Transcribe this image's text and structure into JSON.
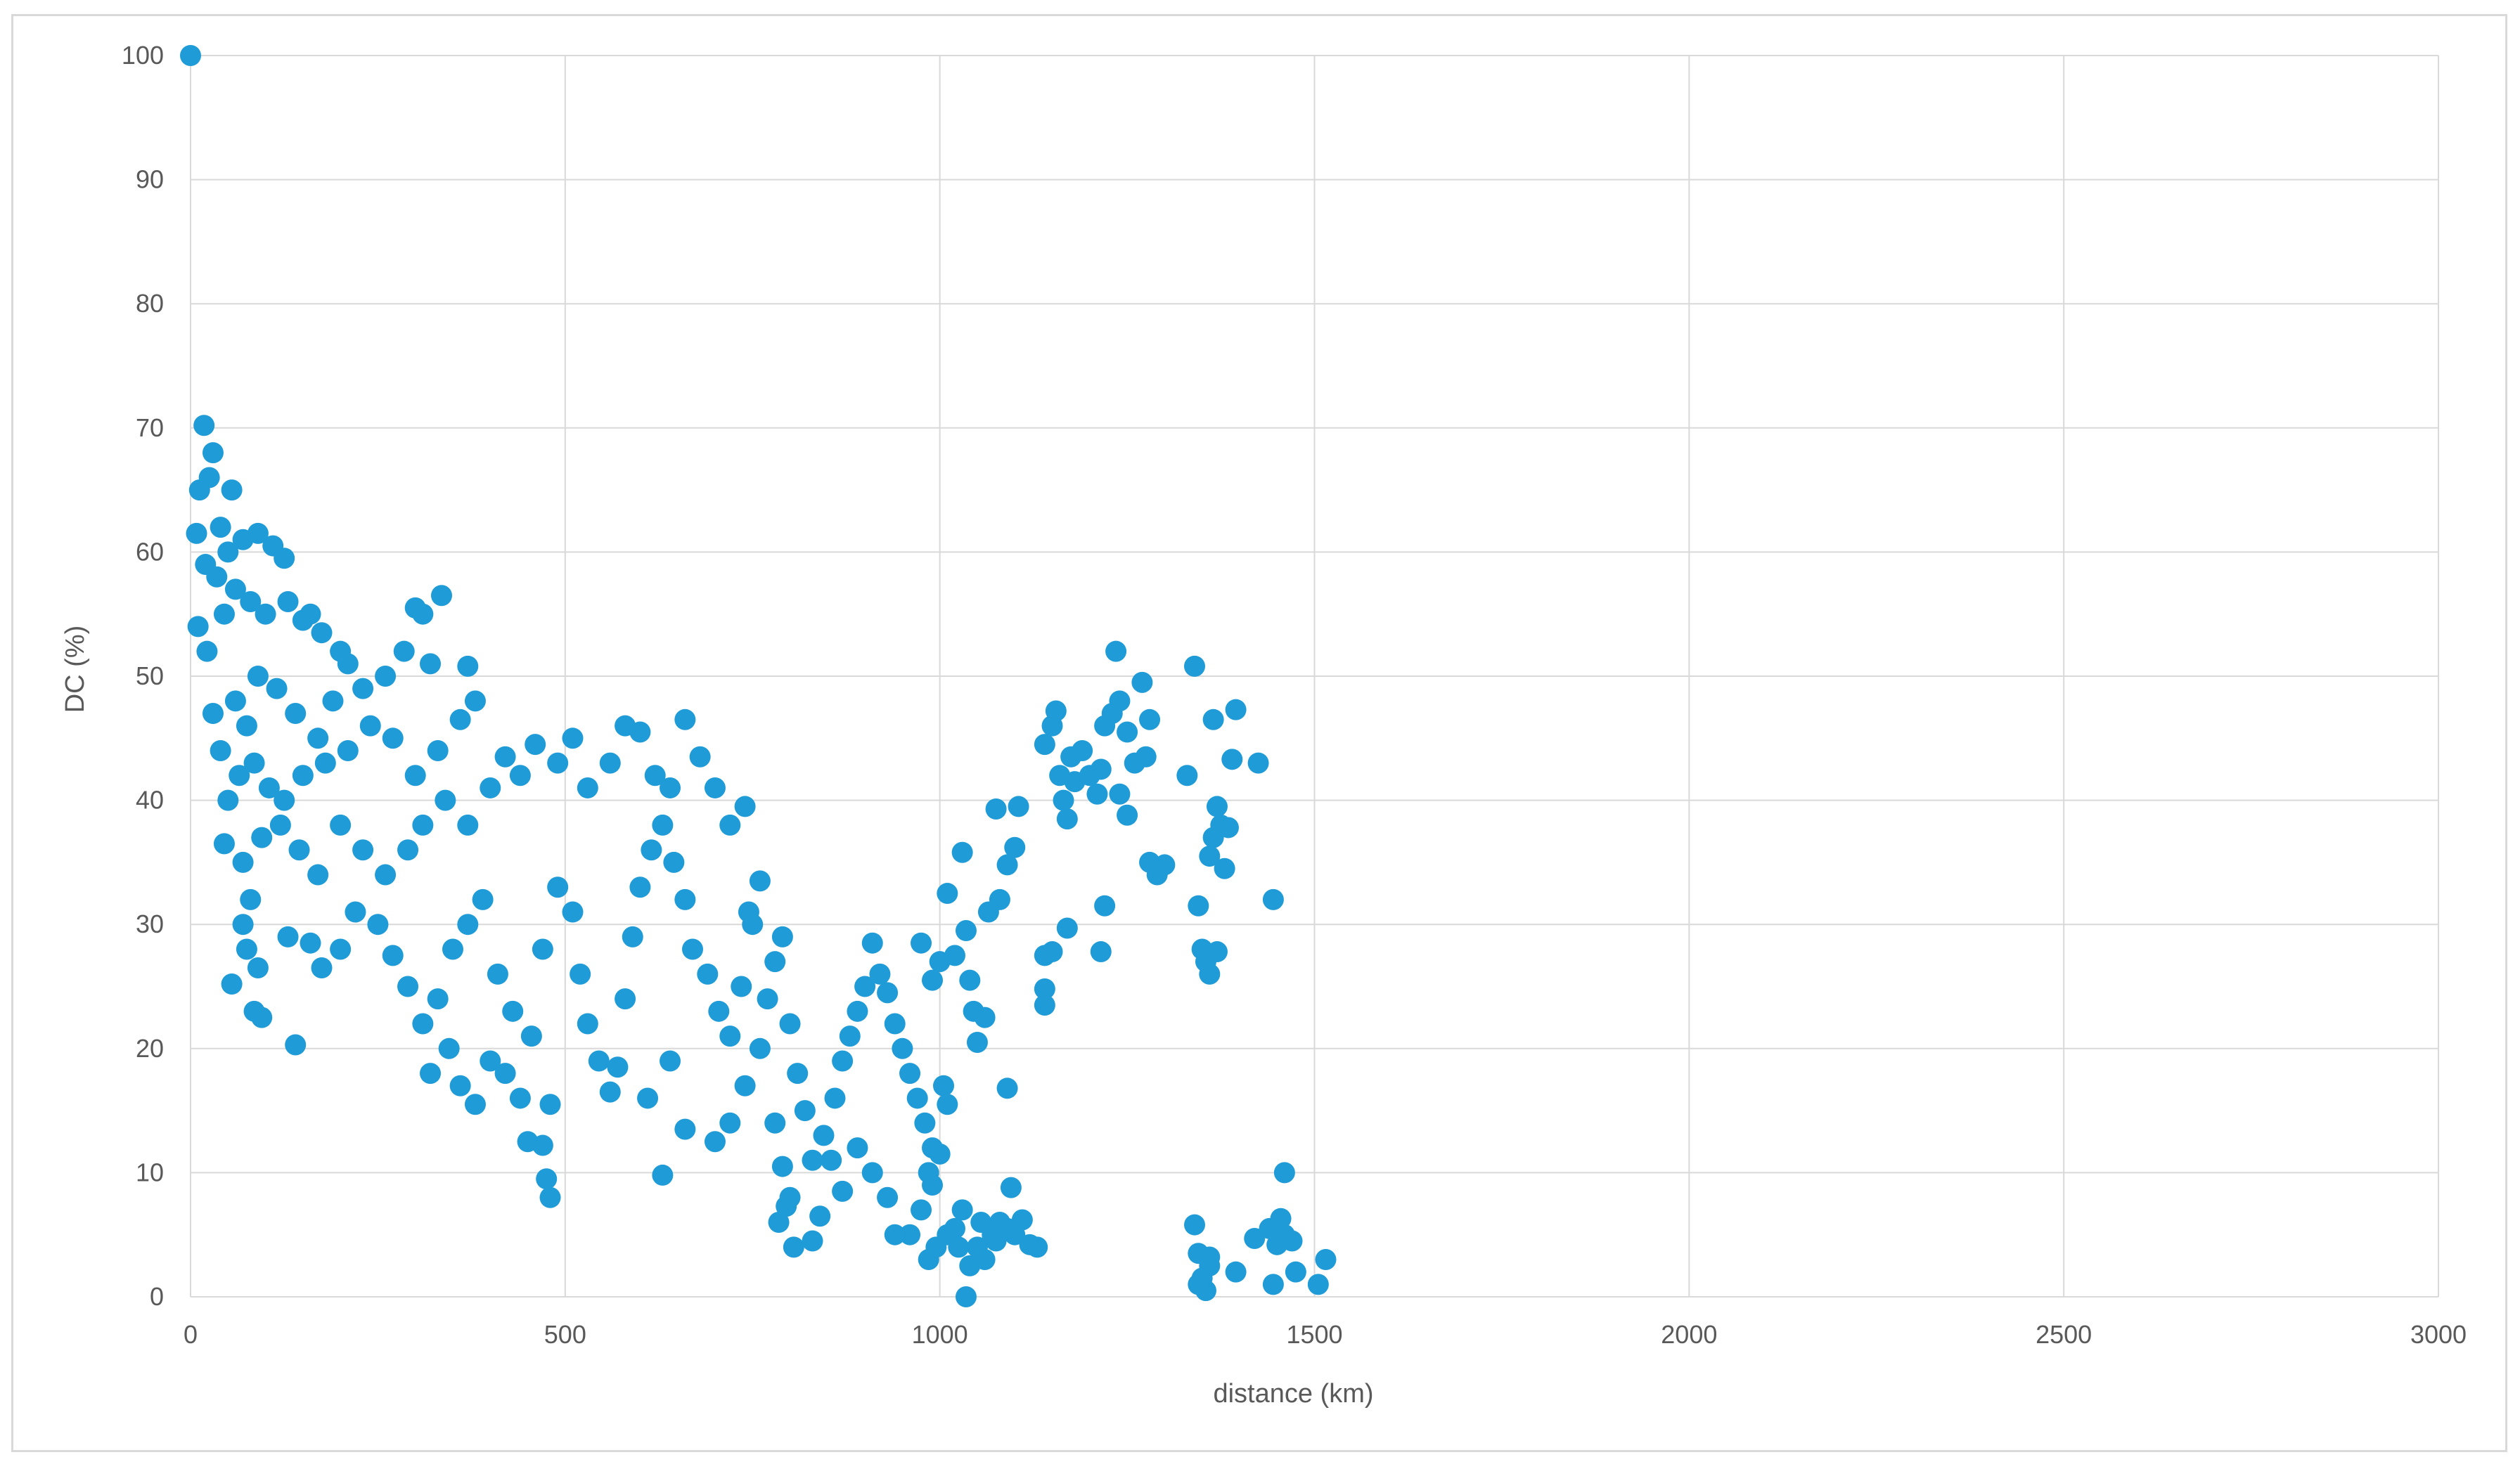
{
  "chart_data": {
    "type": "scatter",
    "title": "",
    "xlabel": "distance (km)",
    "ylabel": "DC (%)",
    "xlim": [
      0,
      3000
    ],
    "ylim": [
      0,
      100
    ],
    "x_ticks": [
      "0",
      "500",
      "1000",
      "1500",
      "2000",
      "2500",
      "3000"
    ],
    "y_ticks": [
      "0",
      "10",
      "20",
      "30",
      "40",
      "50",
      "60",
      "70",
      "80",
      "90",
      "100"
    ],
    "grid": true,
    "legend": "none",
    "marker_color": "#1f9bd7",
    "series": [
      {
        "points": [
          [
            0,
            100
          ],
          [
            18,
            70.2
          ],
          [
            30,
            68
          ],
          [
            12,
            65
          ],
          [
            25,
            66
          ],
          [
            55,
            65
          ],
          [
            8,
            61.5
          ],
          [
            40,
            62
          ],
          [
            20,
            59
          ],
          [
            35,
            58
          ],
          [
            50,
            60
          ],
          [
            70,
            61
          ],
          [
            90,
            61.5
          ],
          [
            110,
            60.5
          ],
          [
            125,
            59.5
          ],
          [
            10,
            54
          ],
          [
            22,
            52
          ],
          [
            45,
            55
          ],
          [
            60,
            57
          ],
          [
            80,
            56
          ],
          [
            100,
            55
          ],
          [
            130,
            56
          ],
          [
            150,
            54.5
          ],
          [
            160,
            55
          ],
          [
            175,
            53.5
          ],
          [
            200,
            52
          ],
          [
            210,
            51
          ],
          [
            30,
            47
          ],
          [
            40,
            44
          ],
          [
            60,
            48
          ],
          [
            75,
            46
          ],
          [
            90,
            50
          ],
          [
            115,
            49
          ],
          [
            140,
            47
          ],
          [
            170,
            45
          ],
          [
            190,
            48
          ],
          [
            230,
            49
          ],
          [
            260,
            50
          ],
          [
            285,
            52
          ],
          [
            300,
            55.5
          ],
          [
            310,
            55
          ],
          [
            335,
            56.5
          ],
          [
            320,
            51
          ],
          [
            370,
            50.8
          ],
          [
            50,
            40
          ],
          [
            65,
            42
          ],
          [
            85,
            43
          ],
          [
            105,
            41
          ],
          [
            125,
            40
          ],
          [
            150,
            42
          ],
          [
            180,
            43
          ],
          [
            210,
            44
          ],
          [
            240,
            46
          ],
          [
            270,
            45
          ],
          [
            300,
            42
          ],
          [
            330,
            44
          ],
          [
            360,
            46.5
          ],
          [
            380,
            48
          ],
          [
            45,
            36.5
          ],
          [
            70,
            35
          ],
          [
            95,
            37
          ],
          [
            120,
            38
          ],
          [
            145,
            36
          ],
          [
            170,
            34
          ],
          [
            200,
            38
          ],
          [
            230,
            36
          ],
          [
            260,
            34
          ],
          [
            290,
            36
          ],
          [
            310,
            38
          ],
          [
            340,
            40
          ],
          [
            370,
            38
          ],
          [
            400,
            41
          ],
          [
            420,
            43.5
          ],
          [
            440,
            42
          ],
          [
            460,
            44.5
          ],
          [
            490,
            43
          ],
          [
            510,
            45
          ],
          [
            530,
            41
          ],
          [
            560,
            43
          ],
          [
            580,
            46
          ],
          [
            600,
            45.5
          ],
          [
            620,
            42
          ],
          [
            640,
            41
          ],
          [
            660,
            46.5
          ],
          [
            680,
            43.5
          ],
          [
            700,
            41
          ],
          [
            720,
            38
          ],
          [
            740,
            39.5
          ],
          [
            70,
            30
          ],
          [
            75,
            28
          ],
          [
            80,
            32
          ],
          [
            90,
            26.5
          ],
          [
            55,
            25.2
          ],
          [
            85,
            23
          ],
          [
            95,
            22.5
          ],
          [
            140,
            20.3
          ],
          [
            130,
            29
          ],
          [
            160,
            28.5
          ],
          [
            175,
            26.5
          ],
          [
            200,
            28
          ],
          [
            220,
            31
          ],
          [
            250,
            30
          ],
          [
            270,
            27.5
          ],
          [
            290,
            25
          ],
          [
            310,
            22
          ],
          [
            330,
            24
          ],
          [
            345,
            20
          ],
          [
            360,
            17
          ],
          [
            380,
            15.5
          ],
          [
            400,
            19
          ],
          [
            420,
            18
          ],
          [
            440,
            16
          ],
          [
            450,
            12.5
          ],
          [
            470,
            12.2
          ],
          [
            480,
            15.5
          ],
          [
            475,
            9.5
          ],
          [
            480,
            8
          ],
          [
            320,
            18
          ],
          [
            350,
            28
          ],
          [
            370,
            30
          ],
          [
            390,
            32
          ],
          [
            410,
            26
          ],
          [
            430,
            23
          ],
          [
            455,
            21
          ],
          [
            470,
            28
          ],
          [
            490,
            33
          ],
          [
            510,
            31
          ],
          [
            520,
            26
          ],
          [
            530,
            22
          ],
          [
            545,
            19
          ],
          [
            560,
            16.5
          ],
          [
            570,
            18.5
          ],
          [
            580,
            24
          ],
          [
            590,
            29
          ],
          [
            600,
            33
          ],
          [
            615,
            36
          ],
          [
            630,
            38
          ],
          [
            645,
            35
          ],
          [
            660,
            32
          ],
          [
            670,
            28
          ],
          [
            690,
            26
          ],
          [
            705,
            23
          ],
          [
            720,
            21
          ],
          [
            735,
            25
          ],
          [
            750,
            30
          ],
          [
            760,
            33.5
          ],
          [
            745,
            31
          ],
          [
            630,
            9.8
          ],
          [
            660,
            13.5
          ],
          [
            640,
            19
          ],
          [
            610,
            16
          ],
          [
            700,
            12.5
          ],
          [
            720,
            14
          ],
          [
            740,
            17
          ],
          [
            760,
            20
          ],
          [
            770,
            24
          ],
          [
            780,
            27
          ],
          [
            790,
            29
          ],
          [
            800,
            22
          ],
          [
            810,
            18
          ],
          [
            820,
            15
          ],
          [
            780,
            14
          ],
          [
            790,
            10.5
          ],
          [
            800,
            8
          ],
          [
            785,
            6
          ],
          [
            795,
            7.3
          ],
          [
            805,
            4
          ],
          [
            830,
            4.5
          ],
          [
            840,
            6.5
          ],
          [
            830,
            11
          ],
          [
            845,
            13
          ],
          [
            860,
            16
          ],
          [
            870,
            19
          ],
          [
            880,
            21
          ],
          [
            890,
            23
          ],
          [
            900,
            25
          ],
          [
            910,
            28.5
          ],
          [
            920,
            26
          ],
          [
            930,
            24.5
          ],
          [
            940,
            22
          ],
          [
            950,
            20
          ],
          [
            960,
            18
          ],
          [
            970,
            16
          ],
          [
            980,
            14
          ],
          [
            990,
            12
          ],
          [
            985,
            10
          ],
          [
            975,
            7
          ],
          [
            960,
            5
          ],
          [
            940,
            5
          ],
          [
            930,
            8
          ],
          [
            910,
            10
          ],
          [
            890,
            12
          ],
          [
            870,
            8.5
          ],
          [
            855,
            11
          ],
          [
            975,
            28.5
          ],
          [
            990,
            25.5
          ],
          [
            1000,
            27
          ],
          [
            1010,
            32.5
          ],
          [
            1020,
            27.5
          ],
          [
            1030,
            35.8
          ],
          [
            1035,
            29.5
          ],
          [
            1040,
            25.5
          ],
          [
            1045,
            23
          ],
          [
            1050,
            20.5
          ],
          [
            1060,
            22.5
          ],
          [
            1065,
            31
          ],
          [
            1075,
            39.3
          ],
          [
            1080,
            32
          ],
          [
            1090,
            34.8
          ],
          [
            1100,
            36.2
          ],
          [
            1105,
            39.5
          ],
          [
            1090,
            16.8
          ],
          [
            1005,
            17
          ],
          [
            1010,
            15.5
          ],
          [
            1000,
            11.5
          ],
          [
            990,
            9
          ],
          [
            985,
            3
          ],
          [
            995,
            4
          ],
          [
            1010,
            5
          ],
          [
            1020,
            5.5
          ],
          [
            1030,
            7
          ],
          [
            1035,
            0
          ],
          [
            1040,
            2.5
          ],
          [
            1050,
            4
          ],
          [
            1060,
            3
          ],
          [
            1070,
            5
          ],
          [
            1080,
            6
          ],
          [
            1090,
            5.5
          ],
          [
            1100,
            5
          ],
          [
            1110,
            6.2
          ],
          [
            1120,
            4.2
          ],
          [
            1130,
            4
          ],
          [
            1025,
            4
          ],
          [
            1055,
            6
          ],
          [
            1075,
            4.5
          ],
          [
            1095,
            8.8
          ],
          [
            1140,
            44.5
          ],
          [
            1150,
            46
          ],
          [
            1155,
            47.2
          ],
          [
            1160,
            42
          ],
          [
            1165,
            40
          ],
          [
            1170,
            38.5
          ],
          [
            1175,
            43.5
          ],
          [
            1180,
            41.5
          ],
          [
            1190,
            44
          ],
          [
            1200,
            42
          ],
          [
            1210,
            40.5
          ],
          [
            1215,
            42.5
          ],
          [
            1220,
            46
          ],
          [
            1230,
            47
          ],
          [
            1235,
            52
          ],
          [
            1240,
            48
          ],
          [
            1250,
            45.5
          ],
          [
            1260,
            43
          ],
          [
            1270,
            49.5
          ],
          [
            1275,
            43.5
          ],
          [
            1280,
            46.5
          ],
          [
            1240,
            40.5
          ],
          [
            1250,
            38.8
          ],
          [
            1140,
            27.5
          ],
          [
            1150,
            27.8
          ],
          [
            1140,
            24.8
          ],
          [
            1140,
            23.5
          ],
          [
            1170,
            29.7
          ],
          [
            1215,
            27.8
          ],
          [
            1220,
            31.5
          ],
          [
            1280,
            35
          ],
          [
            1290,
            34
          ],
          [
            1300,
            34.8
          ],
          [
            1330,
            42
          ],
          [
            1340,
            50.8
          ],
          [
            1345,
            31.5
          ],
          [
            1350,
            28
          ],
          [
            1355,
            27
          ],
          [
            1360,
            26
          ],
          [
            1360,
            35.5
          ],
          [
            1365,
            37
          ],
          [
            1370,
            39.5
          ],
          [
            1375,
            38
          ],
          [
            1380,
            34.5
          ],
          [
            1385,
            37.8
          ],
          [
            1390,
            43.3
          ],
          [
            1395,
            47.3
          ],
          [
            1365,
            46.5
          ],
          [
            1370,
            27.8
          ],
          [
            1425,
            43
          ],
          [
            1445,
            32
          ],
          [
            1340,
            5.8
          ],
          [
            1345,
            3.5
          ],
          [
            1350,
            1.5
          ],
          [
            1355,
            0.5
          ],
          [
            1360,
            2.5
          ],
          [
            1360,
            3.2
          ],
          [
            1345,
            1
          ],
          [
            1395,
            2
          ],
          [
            1420,
            4.7
          ],
          [
            1440,
            5.5
          ],
          [
            1445,
            1
          ],
          [
            1450,
            4.2
          ],
          [
            1455,
            6.3
          ],
          [
            1460,
            5
          ],
          [
            1460,
            10
          ],
          [
            1470,
            4.5
          ],
          [
            1475,
            2
          ],
          [
            1505,
            1
          ],
          [
            1515,
            3
          ]
        ]
      }
    ]
  }
}
